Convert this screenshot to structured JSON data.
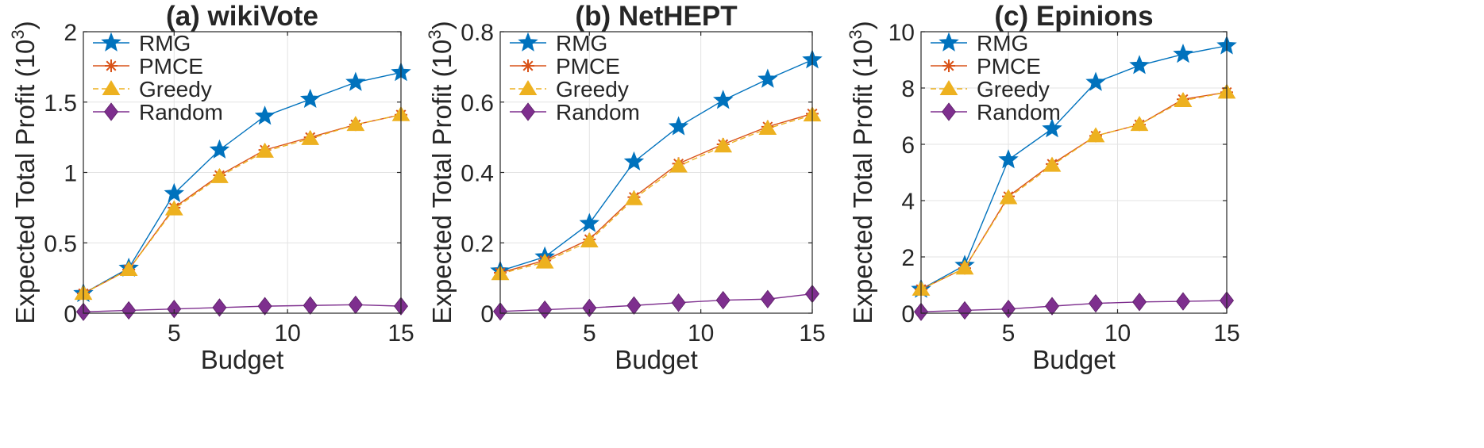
{
  "chart_data": [
    {
      "type": "line",
      "title": "(a) wikiVote",
      "xlabel": "Budget",
      "ylabel": "Expected Total Profit (10",
      "ylabel_sup": "3",
      "ylabel_close": ")",
      "x": [
        1,
        3,
        5,
        7,
        9,
        11,
        13,
        15
      ],
      "xlim": [
        1,
        15
      ],
      "ylim": [
        0,
        2
      ],
      "xticks": [
        5,
        10,
        15
      ],
      "xtick_labels": [
        "5",
        "10",
        "15"
      ],
      "yticks": [
        0,
        0.5,
        1,
        1.5,
        2
      ],
      "ytick_labels": [
        "0",
        "0.5",
        "1",
        "1.5",
        "2"
      ],
      "grid": true,
      "legend_position": "top-left",
      "series": [
        {
          "name": "RMG",
          "marker": "star",
          "color": "#0072BD",
          "values": [
            0.14,
            0.32,
            0.85,
            1.16,
            1.4,
            1.52,
            1.64,
            1.71
          ]
        },
        {
          "name": "PMCE",
          "marker": "asterisk",
          "color": "#D95319",
          "values": [
            0.14,
            0.31,
            0.75,
            0.98,
            1.16,
            1.25,
            1.34,
            1.41
          ]
        },
        {
          "name": "Greedy",
          "marker": "triangle",
          "color": "#EDB120",
          "values": [
            0.14,
            0.31,
            0.74,
            0.97,
            1.15,
            1.24,
            1.34,
            1.41
          ]
        },
        {
          "name": "Random",
          "marker": "diamond",
          "color": "#7E2F8E",
          "values": [
            0.01,
            0.02,
            0.03,
            0.04,
            0.05,
            0.055,
            0.06,
            0.05
          ]
        }
      ]
    },
    {
      "type": "line",
      "title": "(b) NetHEPT",
      "xlabel": "Budget",
      "ylabel": "Expected Total Profit (10",
      "ylabel_sup": "3",
      "ylabel_close": ")",
      "x": [
        1,
        3,
        5,
        7,
        9,
        11,
        13,
        15
      ],
      "xlim": [
        1,
        15
      ],
      "ylim": [
        0,
        0.8
      ],
      "xticks": [
        5,
        10,
        15
      ],
      "xtick_labels": [
        "5",
        "10",
        "15"
      ],
      "yticks": [
        0,
        0.2,
        0.4,
        0.6,
        0.8
      ],
      "ytick_labels": [
        "0",
        "0.2",
        "0.4",
        "0.6",
        "0.8"
      ],
      "grid": true,
      "legend_position": "top-left",
      "series": [
        {
          "name": "RMG",
          "marker": "star",
          "color": "#0072BD",
          "values": [
            0.12,
            0.16,
            0.255,
            0.43,
            0.53,
            0.605,
            0.665,
            0.72
          ]
        },
        {
          "name": "PMCE",
          "marker": "asterisk",
          "color": "#D95319",
          "values": [
            0.115,
            0.15,
            0.21,
            0.33,
            0.425,
            0.48,
            0.53,
            0.567
          ]
        },
        {
          "name": "Greedy",
          "marker": "triangle",
          "color": "#EDB120",
          "values": [
            0.112,
            0.145,
            0.205,
            0.325,
            0.418,
            0.475,
            0.525,
            0.563
          ]
        },
        {
          "name": "Random",
          "marker": "diamond",
          "color": "#7E2F8E",
          "values": [
            0.005,
            0.01,
            0.015,
            0.022,
            0.03,
            0.037,
            0.04,
            0.055
          ]
        }
      ]
    },
    {
      "type": "line",
      "title": "(c) Epinions",
      "xlabel": "Budget",
      "ylabel": "Expected Total Profit (10",
      "ylabel_sup": "3",
      "ylabel_close": ")",
      "x": [
        1,
        3,
        5,
        7,
        9,
        11,
        13,
        15
      ],
      "xlim": [
        1,
        15
      ],
      "ylim": [
        0,
        10
      ],
      "xticks": [
        5,
        10,
        15
      ],
      "xtick_labels": [
        "5",
        "10",
        "15"
      ],
      "yticks": [
        0,
        2,
        4,
        6,
        8,
        10
      ],
      "ytick_labels": [
        "0",
        "2",
        "4",
        "6",
        "8",
        "10"
      ],
      "grid": true,
      "legend_position": "top-left",
      "series": [
        {
          "name": "RMG",
          "marker": "star",
          "color": "#0072BD",
          "values": [
            0.85,
            1.7,
            5.45,
            6.55,
            8.2,
            8.8,
            9.2,
            9.5
          ]
        },
        {
          "name": "PMCE",
          "marker": "asterisk",
          "color": "#D95319",
          "values": [
            0.85,
            1.6,
            4.15,
            5.3,
            6.3,
            6.7,
            7.6,
            7.85
          ]
        },
        {
          "name": "Greedy",
          "marker": "triangle",
          "color": "#EDB120",
          "values": [
            0.85,
            1.6,
            4.1,
            5.25,
            6.3,
            6.7,
            7.55,
            7.85
          ]
        },
        {
          "name": "Random",
          "marker": "diamond",
          "color": "#7E2F8E",
          "values": [
            0.05,
            0.1,
            0.15,
            0.25,
            0.35,
            0.4,
            0.42,
            0.45
          ]
        }
      ]
    }
  ]
}
